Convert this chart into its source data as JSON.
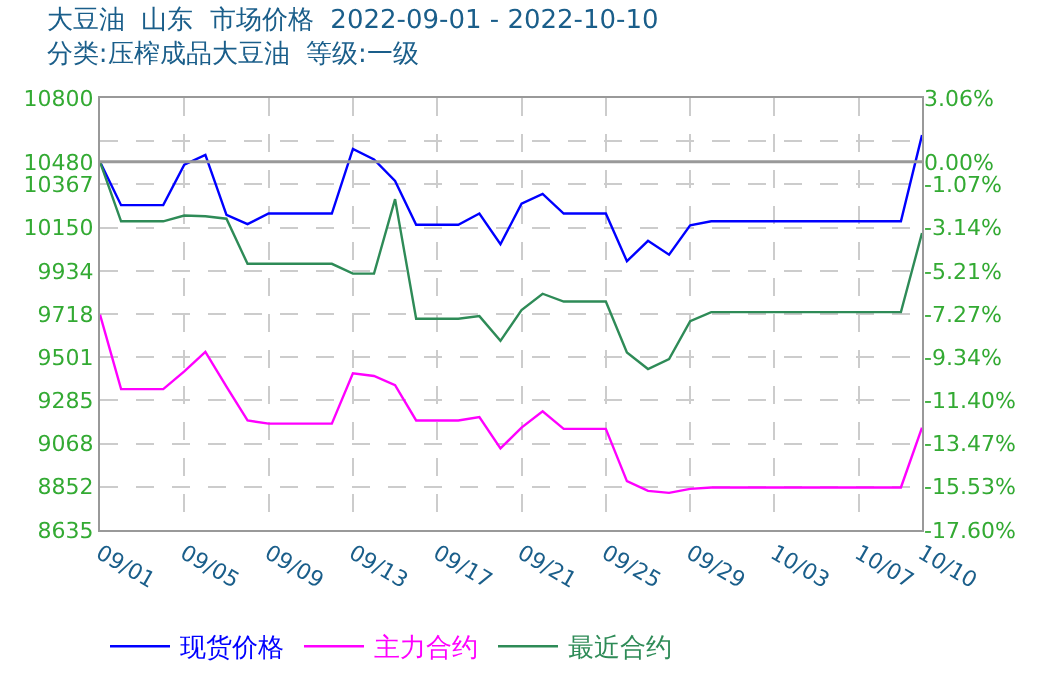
{
  "chart_data": {
    "type": "line",
    "title": "大豆油  山东  市场价格  2022-09-01 - 2022-10-10",
    "subtitle": "分类:压榨成品大豆油  等级:一级",
    "x": [
      "2022-09-01",
      "2022-09-02",
      "2022-09-04",
      "2022-09-05",
      "2022-09-06",
      "2022-09-07",
      "2022-09-08",
      "2022-09-09",
      "2022-09-12",
      "2022-09-13",
      "2022-09-14",
      "2022-09-15",
      "2022-09-16",
      "2022-09-18",
      "2022-09-19",
      "2022-09-20",
      "2022-09-21",
      "2022-09-22",
      "2022-09-23",
      "2022-09-25",
      "2022-09-26",
      "2022-09-27",
      "2022-09-28",
      "2022-09-29",
      "2022-09-30",
      "2022-10-09",
      "2022-10-10"
    ],
    "series": [
      {
        "name": "现货价格",
        "color": "#0000ff",
        "values": [
          10480,
          10263,
          10263,
          10466,
          10515,
          10214,
          10168,
          10221,
          10221,
          10545,
          10492,
          10384,
          10165,
          10165,
          10221,
          10067,
          10270,
          10319,
          10221,
          10221,
          9982,
          10084,
          10015,
          10162,
          10182,
          10182,
          10614
        ]
      },
      {
        "name": "主力合约",
        "color": "#ff00ff",
        "values": [
          9714,
          9341,
          9341,
          9430,
          9528,
          9354,
          9184,
          9168,
          9168,
          9420,
          9407,
          9361,
          9184,
          9184,
          9201,
          9044,
          9148,
          9230,
          9142,
          9142,
          8880,
          8831,
          8821,
          8841,
          8848,
          8848,
          9148
        ]
      },
      {
        "name": "最近合约",
        "color": "#2e8b57",
        "values": [
          10480,
          10182,
          10182,
          10211,
          10207,
          10195,
          9969,
          9969,
          9969,
          9920,
          9920,
          10293,
          9694,
          9694,
          9707,
          9583,
          9737,
          9819,
          9780,
          9780,
          9525,
          9442,
          9491,
          9682,
          9727,
          9727,
          10123
        ]
      }
    ],
    "xlim": [
      "2022-09-01",
      "2022-10-10"
    ],
    "xticks": [
      {
        "value": "2022-09-01",
        "label": "09/01"
      },
      {
        "value": "2022-09-05",
        "label": "09/05"
      },
      {
        "value": "2022-09-09",
        "label": "09/09"
      },
      {
        "value": "2022-09-13",
        "label": "09/13"
      },
      {
        "value": "2022-09-17",
        "label": "09/17"
      },
      {
        "value": "2022-09-21",
        "label": "09/21"
      },
      {
        "value": "2022-09-25",
        "label": "09/25"
      },
      {
        "value": "2022-09-29",
        "label": "09/29"
      },
      {
        "value": "2022-10-03",
        "label": "10/03"
      },
      {
        "value": "2022-10-07",
        "label": "10/07"
      },
      {
        "value": "2022-10-10",
        "label": "10/10"
      }
    ],
    "ylim": [
      8635,
      10800
    ],
    "yticks": [
      8635,
      8852,
      9068,
      9285,
      9501,
      9718,
      9934,
      10150,
      10367,
      10480,
      {
        "value": 10584,
        "label": null
      },
      10800
    ],
    "y2lim": [
      -17.6,
      3.06
    ],
    "y2ticks": [
      {
        "value": -17.6,
        "label": "-17.60%"
      },
      {
        "value": -15.53,
        "label": "-15.53%"
      },
      {
        "value": -13.47,
        "label": "-13.47%"
      },
      {
        "value": -11.4,
        "label": "-11.40%"
      },
      {
        "value": -9.34,
        "label": "-9.34%"
      },
      {
        "value": -7.27,
        "label": "-7.27%"
      },
      {
        "value": -5.21,
        "label": "-5.21%"
      },
      {
        "value": -3.14,
        "label": "-3.14%"
      },
      {
        "value": -1.07,
        "label": "-1.07%"
      },
      {
        "value": 0,
        "label": "0.00%"
      },
      {
        "value": 3.06,
        "label": "3.06%"
      }
    ],
    "ref_lines": [
      {
        "axis": "y",
        "value": 10480,
        "label": null,
        "color": "#999999"
      }
    ],
    "grid": true,
    "legend": "bottom",
    "marker": "none",
    "line_style": "solid"
  }
}
